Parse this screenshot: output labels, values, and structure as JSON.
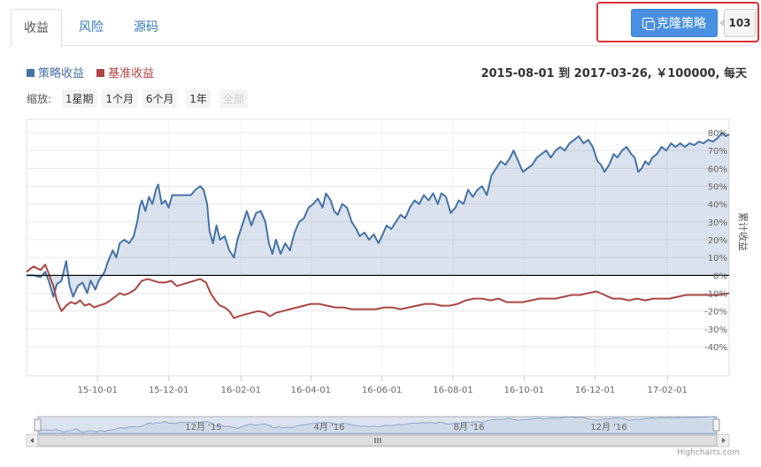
{
  "tabs": [
    "收益",
    "风险",
    "源码"
  ],
  "clone": {
    "label": "克隆策略",
    "count": "103"
  },
  "legend": [
    {
      "name": "策略收益",
      "color": "#4572a7"
    },
    {
      "name": "基准收益",
      "color": "#aa4643"
    }
  ],
  "info": "2015-08-01 到 2017-03-26, ￥100000, 每天",
  "zoom": {
    "label": "缩放:",
    "buttons": [
      "1星期",
      "1个月",
      "6个月",
      "1年",
      "全部"
    ]
  },
  "credit": "Highcharts.com",
  "navigator_labels": [
    "12月 '15",
    "4月 '16",
    "8月 '16",
    "12月 '16"
  ],
  "chart_data": {
    "type": "area",
    "x_range": [
      "2015-08-01",
      "2017-03-26"
    ],
    "xticks": [
      "15-10-01",
      "15-12-01",
      "16-02-01",
      "16-04-01",
      "16-06-01",
      "16-08-01",
      "16-10-01",
      "16-12-01",
      "17-02-01"
    ],
    "ylabel": "累计收益",
    "ylim": [
      -40,
      80
    ],
    "yticks": [
      "80%",
      "70%",
      "60%",
      "50%",
      "40%",
      "30%",
      "20%",
      "10%",
      "0%",
      "-10%",
      "-20%",
      "-30%",
      "-40%"
    ],
    "grid": true,
    "legend_position": "top-left",
    "series": [
      {
        "name": "策略收益",
        "color": "#4572a7",
        "fill": true,
        "points": [
          [
            "2015-08-01",
            0
          ],
          [
            "2015-08-07",
            0
          ],
          [
            "2015-08-13",
            -1
          ],
          [
            "2015-08-17",
            2
          ],
          [
            "2015-08-20",
            -3
          ],
          [
            "2015-08-24",
            -12
          ],
          [
            "2015-08-27",
            -5
          ],
          [
            "2015-08-31",
            -3
          ],
          [
            "2015-09-04",
            8
          ],
          [
            "2015-09-07",
            -6
          ],
          [
            "2015-09-10",
            -12
          ],
          [
            "2015-09-14",
            -6
          ],
          [
            "2015-09-18",
            -4
          ],
          [
            "2015-09-22",
            -10
          ],
          [
            "2015-09-25",
            -3
          ],
          [
            "2015-09-29",
            -8
          ],
          [
            "2015-10-02",
            -3
          ],
          [
            "2015-10-07",
            2
          ],
          [
            "2015-10-10",
            8
          ],
          [
            "2015-10-14",
            14
          ],
          [
            "2015-10-17",
            10
          ],
          [
            "2015-10-20",
            18
          ],
          [
            "2015-10-24",
            20
          ],
          [
            "2015-10-28",
            18
          ],
          [
            "2015-11-01",
            22
          ],
          [
            "2015-11-04",
            30
          ],
          [
            "2015-11-06",
            38
          ],
          [
            "2015-11-08",
            42
          ],
          [
            "2015-11-11",
            36
          ],
          [
            "2015-11-14",
            44
          ],
          [
            "2015-11-17",
            40
          ],
          [
            "2015-11-20",
            48
          ],
          [
            "2015-11-22",
            51
          ],
          [
            "2015-11-25",
            40
          ],
          [
            "2015-11-28",
            42
          ],
          [
            "2015-12-01",
            38
          ],
          [
            "2015-12-04",
            45
          ],
          [
            "2015-12-08",
            45
          ],
          [
            "2015-12-14",
            45
          ],
          [
            "2015-12-20",
            45
          ],
          [
            "2015-12-24",
            48
          ],
          [
            "2015-12-28",
            50
          ],
          [
            "2015-12-31",
            48
          ],
          [
            "2016-01-03",
            40
          ],
          [
            "2016-01-05",
            25
          ],
          [
            "2016-01-08",
            18
          ],
          [
            "2016-01-11",
            28
          ],
          [
            "2016-01-14",
            20
          ],
          [
            "2016-01-18",
            22
          ],
          [
            "2016-01-22",
            14
          ],
          [
            "2016-01-26",
            10
          ],
          [
            "2016-01-29",
            20
          ],
          [
            "2016-02-02",
            28
          ],
          [
            "2016-02-06",
            36
          ],
          [
            "2016-02-10",
            28
          ],
          [
            "2016-02-14",
            35
          ],
          [
            "2016-02-18",
            36
          ],
          [
            "2016-02-22",
            30
          ],
          [
            "2016-02-25",
            18
          ],
          [
            "2016-02-28",
            12
          ],
          [
            "2016-03-02",
            20
          ],
          [
            "2016-03-06",
            12
          ],
          [
            "2016-03-10",
            18
          ],
          [
            "2016-03-14",
            14
          ],
          [
            "2016-03-18",
            24
          ],
          [
            "2016-03-22",
            30
          ],
          [
            "2016-03-26",
            32
          ],
          [
            "2016-03-30",
            38
          ],
          [
            "2016-04-03",
            40
          ],
          [
            "2016-04-07",
            43
          ],
          [
            "2016-04-11",
            38
          ],
          [
            "2016-04-14",
            46
          ],
          [
            "2016-04-18",
            42
          ],
          [
            "2016-04-21",
            36
          ],
          [
            "2016-04-24",
            34
          ],
          [
            "2016-04-28",
            40
          ],
          [
            "2016-05-02",
            38
          ],
          [
            "2016-05-06",
            30
          ],
          [
            "2016-05-10",
            26
          ],
          [
            "2016-05-13",
            22
          ],
          [
            "2016-05-17",
            24
          ],
          [
            "2016-05-21",
            20
          ],
          [
            "2016-05-25",
            23
          ],
          [
            "2016-05-29",
            18
          ],
          [
            "2016-06-01",
            22
          ],
          [
            "2016-06-05",
            28
          ],
          [
            "2016-06-09",
            26
          ],
          [
            "2016-06-13",
            30
          ],
          [
            "2016-06-17",
            34
          ],
          [
            "2016-06-21",
            32
          ],
          [
            "2016-06-25",
            38
          ],
          [
            "2016-06-29",
            42
          ],
          [
            "2016-07-03",
            40
          ],
          [
            "2016-07-07",
            45
          ],
          [
            "2016-07-11",
            42
          ],
          [
            "2016-07-15",
            46
          ],
          [
            "2016-07-19",
            40
          ],
          [
            "2016-07-22",
            46
          ],
          [
            "2016-07-26",
            44
          ],
          [
            "2016-07-30",
            35
          ],
          [
            "2016-08-03",
            38
          ],
          [
            "2016-08-06",
            42
          ],
          [
            "2016-08-10",
            40
          ],
          [
            "2016-08-14",
            48
          ],
          [
            "2016-08-18",
            44
          ],
          [
            "2016-08-22",
            48
          ],
          [
            "2016-08-26",
            50
          ],
          [
            "2016-08-30",
            45
          ],
          [
            "2016-09-03",
            56
          ],
          [
            "2016-09-07",
            60
          ],
          [
            "2016-09-11",
            64
          ],
          [
            "2016-09-15",
            62
          ],
          [
            "2016-09-19",
            66
          ],
          [
            "2016-09-22",
            70
          ],
          [
            "2016-09-26",
            64
          ],
          [
            "2016-09-30",
            58
          ],
          [
            "2016-10-04",
            60
          ],
          [
            "2016-10-08",
            62
          ],
          [
            "2016-10-12",
            66
          ],
          [
            "2016-10-16",
            68
          ],
          [
            "2016-10-20",
            70
          ],
          [
            "2016-10-24",
            66
          ],
          [
            "2016-10-28",
            70
          ],
          [
            "2016-11-01",
            72
          ],
          [
            "2016-11-05",
            70
          ],
          [
            "2016-11-09",
            74
          ],
          [
            "2016-11-13",
            76
          ],
          [
            "2016-11-17",
            78
          ],
          [
            "2016-11-21",
            74
          ],
          [
            "2016-11-25",
            76
          ],
          [
            "2016-11-29",
            72
          ],
          [
            "2016-12-03",
            64
          ],
          [
            "2016-12-06",
            62
          ],
          [
            "2016-12-09",
            58
          ],
          [
            "2016-12-13",
            62
          ],
          [
            "2016-12-17",
            68
          ],
          [
            "2016-12-20",
            66
          ],
          [
            "2016-12-24",
            70
          ],
          [
            "2016-12-28",
            72
          ],
          [
            "2017-01-01",
            68
          ],
          [
            "2017-01-04",
            66
          ],
          [
            "2017-01-07",
            58
          ],
          [
            "2017-01-10",
            60
          ],
          [
            "2017-01-13",
            64
          ],
          [
            "2017-01-16",
            62
          ],
          [
            "2017-01-19",
            66
          ],
          [
            "2017-01-23",
            68
          ],
          [
            "2017-01-27",
            72
          ],
          [
            "2017-01-31",
            70
          ],
          [
            "2017-02-04",
            74
          ],
          [
            "2017-02-08",
            72
          ],
          [
            "2017-02-12",
            74
          ],
          [
            "2017-02-16",
            72
          ],
          [
            "2017-02-20",
            74
          ],
          [
            "2017-02-24",
            73
          ],
          [
            "2017-02-28",
            75
          ],
          [
            "2017-03-04",
            74
          ],
          [
            "2017-03-08",
            76
          ],
          [
            "2017-03-12",
            75
          ],
          [
            "2017-03-16",
            77
          ],
          [
            "2017-03-20",
            80
          ],
          [
            "2017-03-23",
            78
          ],
          [
            "2017-03-26",
            79
          ]
        ]
      },
      {
        "name": "基准收益",
        "color": "#aa4643",
        "fill": false,
        "points": [
          [
            "2015-08-01",
            2
          ],
          [
            "2015-08-07",
            5
          ],
          [
            "2015-08-13",
            3
          ],
          [
            "2015-08-17",
            6
          ],
          [
            "2015-08-20",
            1
          ],
          [
            "2015-08-24",
            -6
          ],
          [
            "2015-08-27",
            -14
          ],
          [
            "2015-08-31",
            -20
          ],
          [
            "2015-09-04",
            -17
          ],
          [
            "2015-09-08",
            -15
          ],
          [
            "2015-09-12",
            -16
          ],
          [
            "2015-09-16",
            -14
          ],
          [
            "2015-09-20",
            -17
          ],
          [
            "2015-09-24",
            -16
          ],
          [
            "2015-09-28",
            -18
          ],
          [
            "2015-10-02",
            -17
          ],
          [
            "2015-10-07",
            -16
          ],
          [
            "2015-10-12",
            -14
          ],
          [
            "2015-10-16",
            -12
          ],
          [
            "2015-10-20",
            -10
          ],
          [
            "2015-10-24",
            -11
          ],
          [
            "2015-10-28",
            -10
          ],
          [
            "2015-11-02",
            -8
          ],
          [
            "2015-11-08",
            -3
          ],
          [
            "2015-11-13",
            -2
          ],
          [
            "2015-11-18",
            -3
          ],
          [
            "2015-11-23",
            -4
          ],
          [
            "2015-11-28",
            -4
          ],
          [
            "2015-12-03",
            -3
          ],
          [
            "2015-12-08",
            -6
          ],
          [
            "2015-12-13",
            -5
          ],
          [
            "2015-12-18",
            -4
          ],
          [
            "2015-12-23",
            -3
          ],
          [
            "2015-12-28",
            -2
          ],
          [
            "2016-01-02",
            -4
          ],
          [
            "2016-01-06",
            -10
          ],
          [
            "2016-01-10",
            -14
          ],
          [
            "2016-01-14",
            -17
          ],
          [
            "2016-01-18",
            -18
          ],
          [
            "2016-01-22",
            -20
          ],
          [
            "2016-01-26",
            -24
          ],
          [
            "2016-01-30",
            -23
          ],
          [
            "2016-02-04",
            -22
          ],
          [
            "2016-02-10",
            -21
          ],
          [
            "2016-02-16",
            -20
          ],
          [
            "2016-02-22",
            -21
          ],
          [
            "2016-02-26",
            -23
          ],
          [
            "2016-03-02",
            -21
          ],
          [
            "2016-03-08",
            -20
          ],
          [
            "2016-03-14",
            -19
          ],
          [
            "2016-03-20",
            -18
          ],
          [
            "2016-03-26",
            -17
          ],
          [
            "2016-04-01",
            -16
          ],
          [
            "2016-04-08",
            -16
          ],
          [
            "2016-04-15",
            -17
          ],
          [
            "2016-04-22",
            -18
          ],
          [
            "2016-04-29",
            -18
          ],
          [
            "2016-05-06",
            -19
          ],
          [
            "2016-05-13",
            -19
          ],
          [
            "2016-05-20",
            -19
          ],
          [
            "2016-05-27",
            -19
          ],
          [
            "2016-06-03",
            -18
          ],
          [
            "2016-06-10",
            -18
          ],
          [
            "2016-06-17",
            -19
          ],
          [
            "2016-06-24",
            -18
          ],
          [
            "2016-07-01",
            -17
          ],
          [
            "2016-07-08",
            -16
          ],
          [
            "2016-07-15",
            -16
          ],
          [
            "2016-07-22",
            -17
          ],
          [
            "2016-07-29",
            -17
          ],
          [
            "2016-08-05",
            -16
          ],
          [
            "2016-08-12",
            -14
          ],
          [
            "2016-08-19",
            -13
          ],
          [
            "2016-08-26",
            -13
          ],
          [
            "2016-09-02",
            -14
          ],
          [
            "2016-09-09",
            -13
          ],
          [
            "2016-09-16",
            -15
          ],
          [
            "2016-09-23",
            -15
          ],
          [
            "2016-09-30",
            -15
          ],
          [
            "2016-10-07",
            -14
          ],
          [
            "2016-10-14",
            -13
          ],
          [
            "2016-10-21",
            -13
          ],
          [
            "2016-10-28",
            -13
          ],
          [
            "2016-11-04",
            -12
          ],
          [
            "2016-11-11",
            -11
          ],
          [
            "2016-11-18",
            -11
          ],
          [
            "2016-11-25",
            -10
          ],
          [
            "2016-12-02",
            -9
          ],
          [
            "2016-12-09",
            -11
          ],
          [
            "2016-12-16",
            -13
          ],
          [
            "2016-12-23",
            -13
          ],
          [
            "2016-12-30",
            -14
          ],
          [
            "2017-01-06",
            -13
          ],
          [
            "2017-01-13",
            -14
          ],
          [
            "2017-01-20",
            -13
          ],
          [
            "2017-01-27",
            -13
          ],
          [
            "2017-02-03",
            -13
          ],
          [
            "2017-02-10",
            -12
          ],
          [
            "2017-02-17",
            -11
          ],
          [
            "2017-02-24",
            -11
          ],
          [
            "2017-03-03",
            -11
          ],
          [
            "2017-03-10",
            -11
          ],
          [
            "2017-03-17",
            -11
          ],
          [
            "2017-03-26",
            -10
          ]
        ]
      }
    ]
  }
}
